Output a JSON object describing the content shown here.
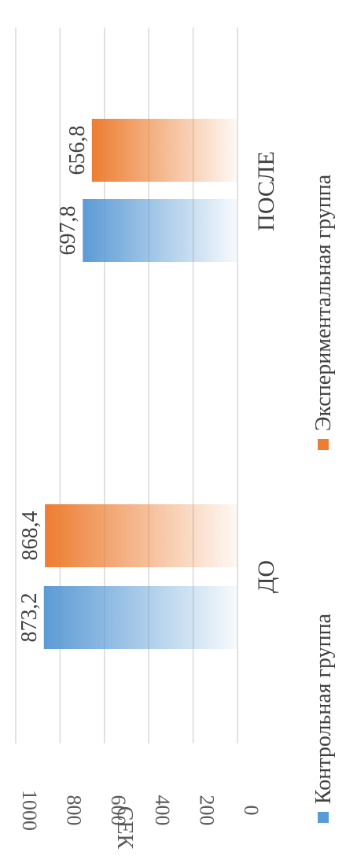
{
  "chart_data": {
    "type": "bar",
    "title": "",
    "ylabel": "СЕК",
    "xlabel": "",
    "categories": [
      "ДО",
      "ПОСЛЕ"
    ],
    "series": [
      {
        "name": "Контрольная группа",
        "values": [
          873.2,
          697.8
        ],
        "labels": [
          "873,2",
          "697,8"
        ],
        "color": "#5B9BD5"
      },
      {
        "name": "Экспериментальная группа",
        "values": [
          868.4,
          656.8
        ],
        "labels": [
          "868,4",
          "656,8"
        ],
        "color": "#ED7D31"
      }
    ],
    "ylim": [
      0,
      1000
    ],
    "yticks": [
      0,
      200,
      400,
      600,
      800,
      1000
    ],
    "ytick_labels": [
      "0",
      "200",
      "400",
      "600",
      "800",
      "1000"
    ],
    "grid": true,
    "legend_position": "bottom",
    "orientation": "rotated 90° clockwise",
    "gradient_fill": true
  }
}
